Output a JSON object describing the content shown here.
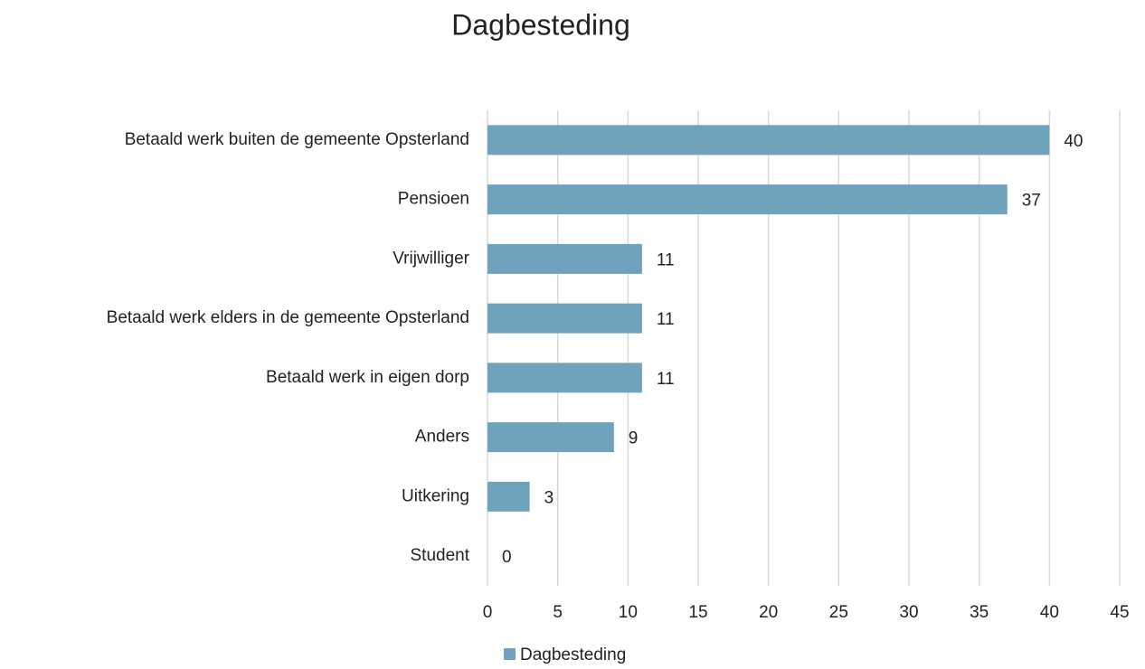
{
  "chart_data": {
    "type": "bar",
    "orientation": "horizontal",
    "title": "Dagbesteding",
    "categories": [
      "Betaald werk buiten de gemeente Opsterland",
      "Pensioen",
      "Vrijwilliger",
      "Betaald werk elders in de gemeente Opsterland",
      "Betaald werk in eigen dorp",
      "Anders",
      "Uitkering",
      "Student"
    ],
    "series": [
      {
        "name": "Dagbesteding",
        "color": "#6fa2bd",
        "values": [
          40,
          37,
          11,
          11,
          11,
          9,
          3,
          0
        ]
      }
    ],
    "xlim": [
      0,
      45
    ],
    "xticks": [
      0,
      5,
      10,
      15,
      20,
      25,
      30,
      35,
      40,
      45
    ],
    "grid": true,
    "legend": "bottom"
  }
}
